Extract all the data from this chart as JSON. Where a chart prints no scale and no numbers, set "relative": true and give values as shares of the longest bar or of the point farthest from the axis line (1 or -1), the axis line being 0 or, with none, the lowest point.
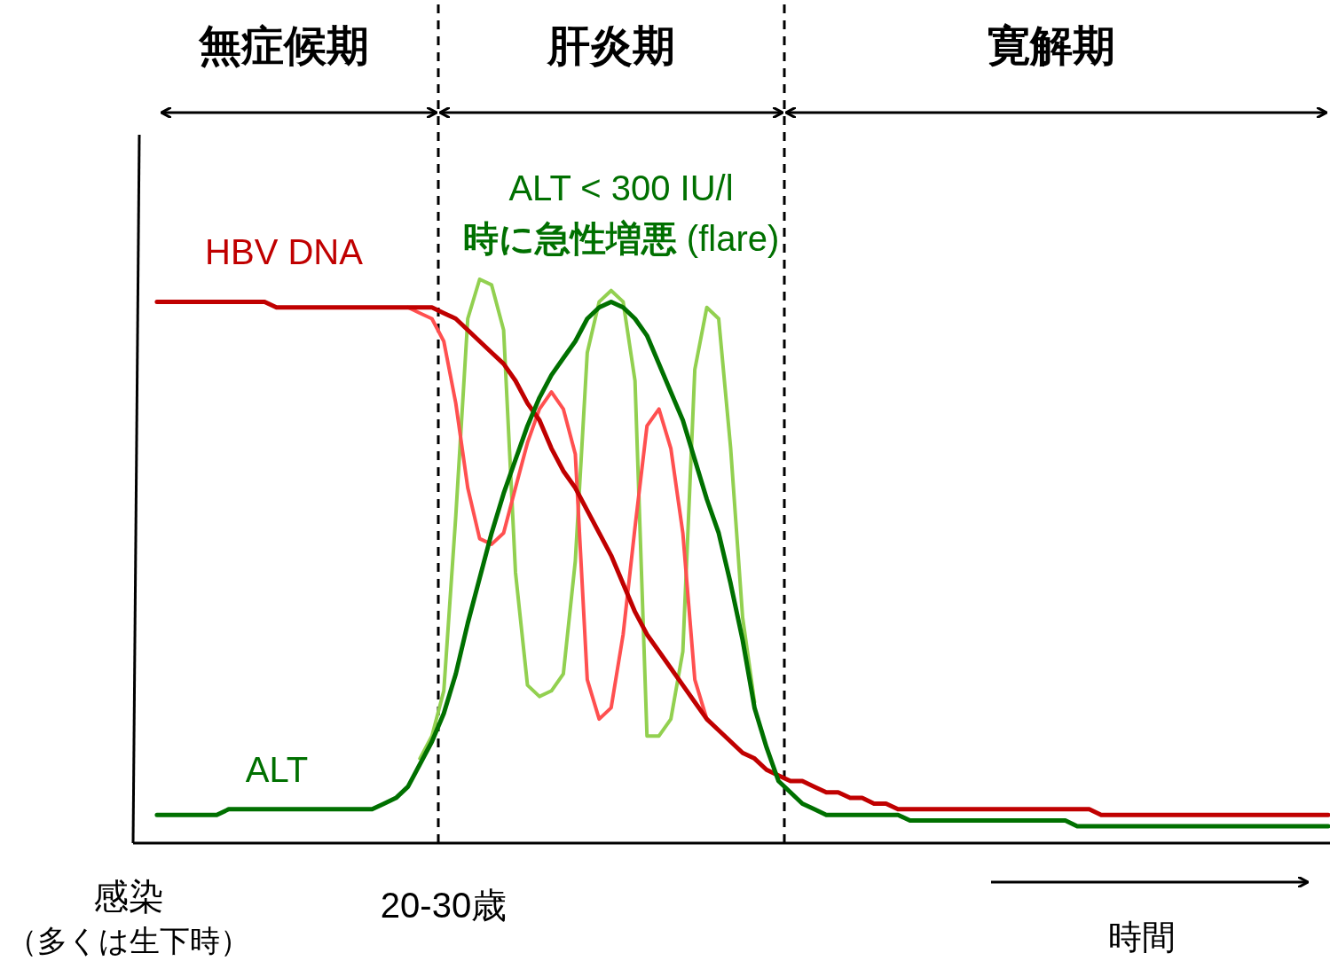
{
  "chart_data": {
    "type": "line",
    "relative": true,
    "xlabel": "時間",
    "categories": [
      null,
      null,
      null,
      null,
      null,
      null,
      null,
      null,
      null,
      null,
      null,
      null,
      null,
      null,
      null,
      null,
      null,
      null,
      null,
      null,
      null,
      null,
      null,
      null,
      null,
      null,
      null,
      null,
      null,
      null,
      null,
      null,
      null,
      null,
      null,
      null,
      null,
      null,
      null,
      null,
      null,
      null,
      null,
      null,
      null,
      null,
      null,
      null,
      null,
      null,
      null,
      null,
      null,
      null,
      null,
      null,
      null,
      null,
      null,
      null,
      null,
      null,
      null,
      null,
      null,
      null,
      null,
      null,
      null,
      null,
      null,
      null,
      null,
      null,
      null,
      null,
      null,
      null,
      null,
      null,
      null,
      null,
      null,
      null,
      null,
      null,
      null,
      null,
      null,
      null,
      null,
      null,
      null,
      null,
      null,
      null,
      null,
      null,
      null,
      null,
      null
    ],
    "annotations": [
      "無症候期",
      "肝炎期",
      "寛解期",
      "ALT < 300 IU/l",
      "**時に急性増悪** (flare)",
      "感染",
      "（多くは生下時）",
      "20-30歳"
    ],
    "series": [
      {
        "name": "HBV DNA",
        "color": "#c00000",
        "values": [
          null,
          null,
          0.96,
          0.96,
          0.96,
          0.96,
          0.96,
          0.96,
          0.96,
          0.96,
          0.96,
          0.96,
          0.95,
          0.95,
          0.95,
          0.95,
          0.95,
          0.95,
          0.95,
          0.95,
          0.95,
          0.95,
          0.95,
          0.95,
          0.95,
          0.95,
          0.94,
          0.93,
          0.91,
          0.89,
          0.87,
          0.85,
          0.82,
          0.78,
          0.75,
          0.7,
          0.66,
          0.63,
          0.59,
          0.55,
          0.51,
          0.46,
          0.41,
          0.37,
          0.34,
          0.31,
          0.28,
          0.25,
          0.22,
          0.2,
          0.18,
          0.16,
          0.15,
          0.13,
          0.12,
          0.11,
          0.11,
          0.1,
          0.09,
          0.09,
          0.08,
          0.08,
          0.07,
          0.07,
          0.06,
          0.06,
          0.06,
          0.06,
          0.06,
          0.06,
          0.06,
          0.06,
          0.06,
          0.06,
          0.06,
          0.06,
          0.06,
          0.06,
          0.06,
          0.06,
          0.06,
          0.05,
          0.05,
          0.05,
          0.05,
          0.05,
          0.05,
          0.05,
          0.05,
          0.05,
          0.05,
          0.05,
          0.05,
          0.05,
          0.05,
          0.05,
          0.05,
          0.05,
          0.05,
          0.05,
          0.05
        ]
      },
      {
        "name": "ALT",
        "color": "#007000",
        "values": [
          null,
          null,
          0.05,
          0.05,
          0.05,
          0.05,
          0.05,
          0.05,
          0.06,
          0.06,
          0.06,
          0.06,
          0.06,
          0.06,
          0.06,
          0.06,
          0.06,
          0.06,
          0.06,
          0.06,
          0.06,
          0.07,
          0.08,
          0.1,
          0.14,
          0.18,
          0.23,
          0.3,
          0.39,
          0.47,
          0.55,
          0.62,
          0.68,
          0.74,
          0.79,
          0.83,
          0.86,
          0.89,
          0.93,
          0.95,
          0.96,
          0.95,
          0.93,
          0.9,
          0.85,
          0.8,
          0.75,
          0.68,
          0.61,
          0.55,
          0.46,
          0.36,
          0.24,
          0.17,
          0.11,
          0.09,
          0.07,
          0.06,
          0.05,
          0.05,
          0.05,
          0.05,
          0.05,
          0.05,
          0.05,
          0.04,
          0.04,
          0.04,
          0.04,
          0.04,
          0.04,
          0.04,
          0.04,
          0.04,
          0.04,
          0.04,
          0.04,
          0.04,
          0.04,
          0.03,
          0.03,
          0.03,
          0.03,
          0.03,
          0.03,
          0.03,
          0.03,
          0.03,
          0.03,
          0.03,
          0.03,
          0.03,
          0.03,
          0.03,
          0.03,
          0.03,
          0.03,
          0.03,
          0.03,
          0.03,
          0.03
        ]
      },
      {
        "color": "#92d050",
        "values": [
          null,
          null,
          null,
          null,
          null,
          null,
          null,
          null,
          null,
          null,
          null,
          null,
          null,
          null,
          null,
          null,
          null,
          null,
          null,
          null,
          null,
          null,
          null,
          null,
          0.15,
          0.19,
          0.27,
          0.58,
          0.93,
          1.0,
          0.99,
          0.91,
          0.48,
          0.28,
          0.26,
          0.27,
          0.3,
          0.5,
          0.87,
          0.96,
          0.98,
          0.96,
          0.82,
          0.19,
          0.19,
          0.22,
          0.34,
          0.84,
          0.95,
          0.93,
          0.7,
          0.4,
          0.25,
          null,
          null,
          null,
          null,
          null,
          null,
          null,
          null,
          null,
          null,
          null,
          null,
          null,
          null,
          null,
          null,
          null,
          null,
          null,
          null,
          null,
          null,
          null,
          null,
          null,
          null,
          null,
          null,
          null,
          null,
          null,
          null,
          null,
          null,
          null,
          null,
          null,
          null,
          null,
          null,
          null,
          null,
          null,
          null,
          null,
          null,
          null,
          null
        ]
      },
      {
        "color": "#ff5050",
        "values": [
          null,
          null,
          null,
          null,
          null,
          null,
          null,
          null,
          null,
          null,
          null,
          null,
          null,
          null,
          null,
          null,
          null,
          null,
          null,
          null,
          null,
          null,
          null,
          0.95,
          0.94,
          0.93,
          0.89,
          0.78,
          0.63,
          0.54,
          0.53,
          0.55,
          0.63,
          0.71,
          0.77,
          0.8,
          0.77,
          0.69,
          0.29,
          0.22,
          0.24,
          0.37,
          0.56,
          0.74,
          0.77,
          0.7,
          0.55,
          0.29,
          0.22,
          null,
          null,
          null,
          null,
          null,
          null,
          null,
          null,
          null,
          null,
          null,
          null,
          null,
          null,
          null,
          null,
          null,
          null,
          null,
          null,
          null,
          null,
          null,
          null,
          null,
          null,
          null,
          null,
          null,
          null,
          null,
          null,
          null,
          null,
          null,
          null,
          null,
          null,
          null,
          null,
          null,
          null,
          null,
          null,
          null,
          null,
          null,
          null,
          null,
          null,
          null,
          null
        ]
      }
    ]
  }
}
